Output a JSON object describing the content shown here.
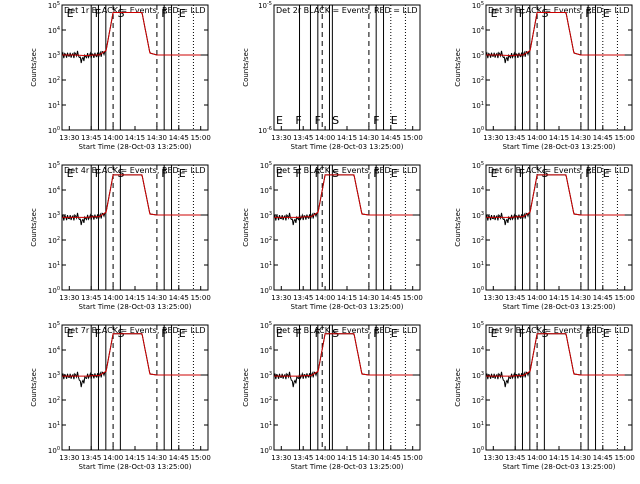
{
  "chart_data": [
    {
      "type": "line",
      "title": "Det 1r BLACK = Events, RED = LLD",
      "xlabel": "Start Time (28-Oct-03 13:25:00)",
      "ylabel": "Counts/sec",
      "yscale": "log",
      "ylim": [
        1,
        100000
      ],
      "xlim": [
        13.4167,
        15.0833
      ],
      "xticks": [
        "13:30",
        "13:45",
        "14:00",
        "14:15",
        "14:30",
        "14:45",
        "15:00"
      ],
      "yticks": [
        "10^0",
        "10^1",
        "10^2",
        "10^3",
        "10^4",
        "10^5"
      ],
      "markers": [
        "E",
        "F",
        "S",
        "F",
        "E"
      ],
      "flat_data": false,
      "series": [
        {
          "name": "Events",
          "color": "#000000"
        },
        {
          "name": "LLD",
          "color": "#cc0000"
        }
      ],
      "x": [
        13.42,
        13.55,
        13.6,
        13.63,
        13.7,
        13.78,
        13.84,
        13.92,
        14.0,
        14.2,
        14.33,
        14.42,
        14.5,
        14.75,
        15.0
      ],
      "values": [
        1000,
        1000,
        1200,
        600,
        950,
        1000,
        1000,
        1500,
        50000,
        50000,
        50000,
        1200,
        1000,
        1000,
        1000
      ]
    },
    {
      "type": "line",
      "title": "Det 2r BLACK = Events, RED = LLD",
      "xlabel": "Start Time (28-Oct-03 13:25:00)",
      "ylabel": "Counts/sec",
      "yscale": "log",
      "ylim": [
        1e-06,
        1e-05
      ],
      "xlim": [
        13.4167,
        15.0833
      ],
      "xticks": [
        "13:30",
        "13:45",
        "14:00",
        "14:15",
        "14:30",
        "14:45",
        "15:00"
      ],
      "yticks": [
        "10^-6",
        "10^-5"
      ],
      "markers": [
        "E",
        "F",
        "F",
        "S",
        "F",
        "E"
      ],
      "flat_data": true,
      "series": [
        {
          "name": "Events",
          "color": "#000000"
        },
        {
          "name": "LLD",
          "color": "#cc0000"
        }
      ],
      "x": [],
      "values": []
    },
    {
      "type": "line",
      "title": "Det 3r BLACK = Events, RED = LLD",
      "xlabel": "Start Time (28-Oct-03 13:25:00)",
      "ylabel": "Counts/sec",
      "yscale": "log",
      "ylim": [
        1,
        100000
      ],
      "xlim": [
        13.4167,
        15.0833
      ],
      "xticks": [
        "13:30",
        "13:45",
        "14:00",
        "14:15",
        "14:30",
        "14:45",
        "15:00"
      ],
      "yticks": [
        "10^0",
        "10^1",
        "10^2",
        "10^3",
        "10^4",
        "10^5"
      ],
      "markers": [
        "E",
        "F",
        "S",
        "F",
        "E"
      ],
      "flat_data": false,
      "series": [
        {
          "name": "Events",
          "color": "#000000"
        },
        {
          "name": "LLD",
          "color": "#cc0000"
        }
      ],
      "x": [
        13.42,
        13.55,
        13.6,
        13.63,
        13.7,
        13.78,
        13.84,
        13.92,
        14.0,
        14.2,
        14.33,
        14.42,
        14.5,
        14.75,
        15.0
      ],
      "values": [
        1000,
        1000,
        1200,
        600,
        950,
        1000,
        1000,
        1500,
        50000,
        50000,
        50000,
        1200,
        1000,
        1000,
        1000
      ]
    },
    {
      "type": "line",
      "title": "Det 4r BLACK = Events, RED = LLD",
      "xlabel": "Start Time (28-Oct-03 13:25:00)",
      "ylabel": "Counts/sec",
      "yscale": "log",
      "ylim": [
        1,
        100000
      ],
      "xlim": [
        13.4167,
        15.0833
      ],
      "xticks": [
        "13:30",
        "13:45",
        "14:00",
        "14:15",
        "14:30",
        "14:45",
        "15:00"
      ],
      "yticks": [
        "10^0",
        "10^1",
        "10^2",
        "10^3",
        "10^4",
        "10^5"
      ],
      "markers": [
        "E",
        "F",
        "S",
        "F",
        "E"
      ],
      "flat_data": false,
      "series": [
        {
          "name": "Events",
          "color": "#000000"
        },
        {
          "name": "LLD",
          "color": "#cc0000"
        }
      ],
      "x": [
        13.42,
        13.55,
        13.6,
        13.63,
        13.7,
        13.78,
        13.84,
        13.92,
        14.0,
        14.2,
        14.33,
        14.42,
        14.5,
        14.75,
        15.0
      ],
      "values": [
        800,
        800,
        1000,
        500,
        800,
        850,
        850,
        1300,
        40000,
        40000,
        40000,
        1100,
        1000,
        1000,
        1000
      ]
    },
    {
      "type": "line",
      "title": "Det 5r BLACK = Events, RED = LLD",
      "xlabel": "Start Time (28-Oct-03 13:25:00)",
      "ylabel": "Counts/sec",
      "yscale": "log",
      "ylim": [
        1,
        100000
      ],
      "xlim": [
        13.4167,
        15.0833
      ],
      "xticks": [
        "13:30",
        "13:45",
        "14:00",
        "14:15",
        "14:30",
        "14:45",
        "15:00"
      ],
      "yticks": [
        "10^0",
        "10^1",
        "10^2",
        "10^3",
        "10^4",
        "10^5"
      ],
      "markers": [
        "E",
        "F",
        "F",
        "S",
        "F",
        "E"
      ],
      "flat_data": false,
      "series": [
        {
          "name": "Events",
          "color": "#000000"
        },
        {
          "name": "LLD",
          "color": "#cc0000"
        }
      ],
      "x": [
        13.42,
        13.55,
        13.6,
        13.63,
        13.7,
        13.78,
        13.84,
        13.92,
        14.0,
        14.2,
        14.33,
        14.42,
        14.5,
        14.75,
        15.0
      ],
      "values": [
        800,
        800,
        1000,
        500,
        800,
        850,
        850,
        1300,
        40000,
        40000,
        40000,
        1100,
        1000,
        1000,
        1000
      ]
    },
    {
      "type": "line",
      "title": "Det 6r BLACK = Events, RED = LLD",
      "xlabel": "Start Time (28-Oct-03 13:25:00)",
      "ylabel": "Counts/sec",
      "yscale": "log",
      "ylim": [
        1,
        100000
      ],
      "xlim": [
        13.4167,
        15.0833
      ],
      "xticks": [
        "13:30",
        "13:45",
        "14:00",
        "14:15",
        "14:30",
        "14:45",
        "15:00"
      ],
      "yticks": [
        "10^0",
        "10^1",
        "10^2",
        "10^3",
        "10^4",
        "10^5"
      ],
      "markers": [
        "E",
        "F",
        "S",
        "F",
        "E"
      ],
      "flat_data": false,
      "series": [
        {
          "name": "Events",
          "color": "#000000"
        },
        {
          "name": "LLD",
          "color": "#cc0000"
        }
      ],
      "x": [
        13.42,
        13.55,
        13.6,
        13.63,
        13.7,
        13.78,
        13.84,
        13.92,
        14.0,
        14.2,
        14.33,
        14.42,
        14.5,
        14.75,
        15.0
      ],
      "values": [
        800,
        800,
        1000,
        500,
        800,
        850,
        850,
        1300,
        40000,
        40000,
        40000,
        1100,
        1000,
        1000,
        1000
      ]
    },
    {
      "type": "line",
      "title": "Det 7r BLACK = Events, RED = LLD",
      "xlabel": "Start Time (28-Oct-03 13:25:00)",
      "ylabel": "Counts/sec",
      "yscale": "log",
      "ylim": [
        1,
        100000
      ],
      "xlim": [
        13.4167,
        15.0833
      ],
      "xticks": [
        "13:30",
        "13:45",
        "14:00",
        "14:15",
        "14:30",
        "14:45",
        "15:00"
      ],
      "yticks": [
        "10^0",
        "10^1",
        "10^2",
        "10^3",
        "10^4",
        "10^5"
      ],
      "markers": [
        "E",
        "F",
        "S",
        "F",
        "E"
      ],
      "flat_data": false,
      "series": [
        {
          "name": "Events",
          "color": "#000000"
        },
        {
          "name": "LLD",
          "color": "#cc0000"
        }
      ],
      "x": [
        13.42,
        13.55,
        13.6,
        13.63,
        13.7,
        13.78,
        13.84,
        13.92,
        14.0,
        14.2,
        14.33,
        14.42,
        14.5,
        14.75,
        15.0
      ],
      "values": [
        900,
        900,
        1100,
        400,
        900,
        950,
        950,
        1400,
        45000,
        45000,
        45000,
        1100,
        1000,
        1000,
        1000
      ]
    },
    {
      "type": "line",
      "title": "Det 8r BLACK = Events, RED = LLD",
      "xlabel": "Start Time (28-Oct-03 13:25:00)",
      "ylabel": "Counts/sec",
      "yscale": "log",
      "ylim": [
        1,
        100000
      ],
      "xlim": [
        13.4167,
        15.0833
      ],
      "xticks": [
        "13:30",
        "13:45",
        "14:00",
        "14:15",
        "14:30",
        "14:45",
        "15:00"
      ],
      "yticks": [
        "10^0",
        "10^1",
        "10^2",
        "10^3",
        "10^4",
        "10^5"
      ],
      "markers": [
        "E",
        "F",
        "F",
        "S",
        "F",
        "E"
      ],
      "flat_data": false,
      "series": [
        {
          "name": "Events",
          "color": "#000000"
        },
        {
          "name": "LLD",
          "color": "#cc0000"
        }
      ],
      "x": [
        13.42,
        13.55,
        13.6,
        13.63,
        13.7,
        13.78,
        13.84,
        13.92,
        14.0,
        14.2,
        14.33,
        14.42,
        14.5,
        14.75,
        15.0
      ],
      "values": [
        900,
        900,
        1100,
        400,
        900,
        950,
        950,
        1400,
        45000,
        45000,
        45000,
        1100,
        1000,
        1000,
        1000
      ]
    },
    {
      "type": "line",
      "title": "Det 9r BLACK = Events, RED = LLD",
      "xlabel": "Start Time (28-Oct-03 13:25:00)",
      "ylabel": "Counts/sec",
      "yscale": "log",
      "ylim": [
        1,
        100000
      ],
      "xlim": [
        13.4167,
        15.0833
      ],
      "xticks": [
        "13:30",
        "13:45",
        "14:00",
        "14:15",
        "14:30",
        "14:45",
        "15:00"
      ],
      "yticks": [
        "10^0",
        "10^1",
        "10^2",
        "10^3",
        "10^4",
        "10^5"
      ],
      "markers": [
        "E",
        "F",
        "S",
        "F",
        "E"
      ],
      "flat_data": false,
      "series": [
        {
          "name": "Events",
          "color": "#000000"
        },
        {
          "name": "LLD",
          "color": "#cc0000"
        }
      ],
      "x": [
        13.42,
        13.55,
        13.6,
        13.63,
        13.7,
        13.78,
        13.84,
        13.92,
        14.0,
        14.2,
        14.33,
        14.42,
        14.5,
        14.75,
        15.0
      ],
      "values": [
        900,
        900,
        1100,
        400,
        900,
        950,
        950,
        1400,
        45000,
        45000,
        45000,
        1100,
        1000,
        1000,
        1000
      ]
    }
  ]
}
